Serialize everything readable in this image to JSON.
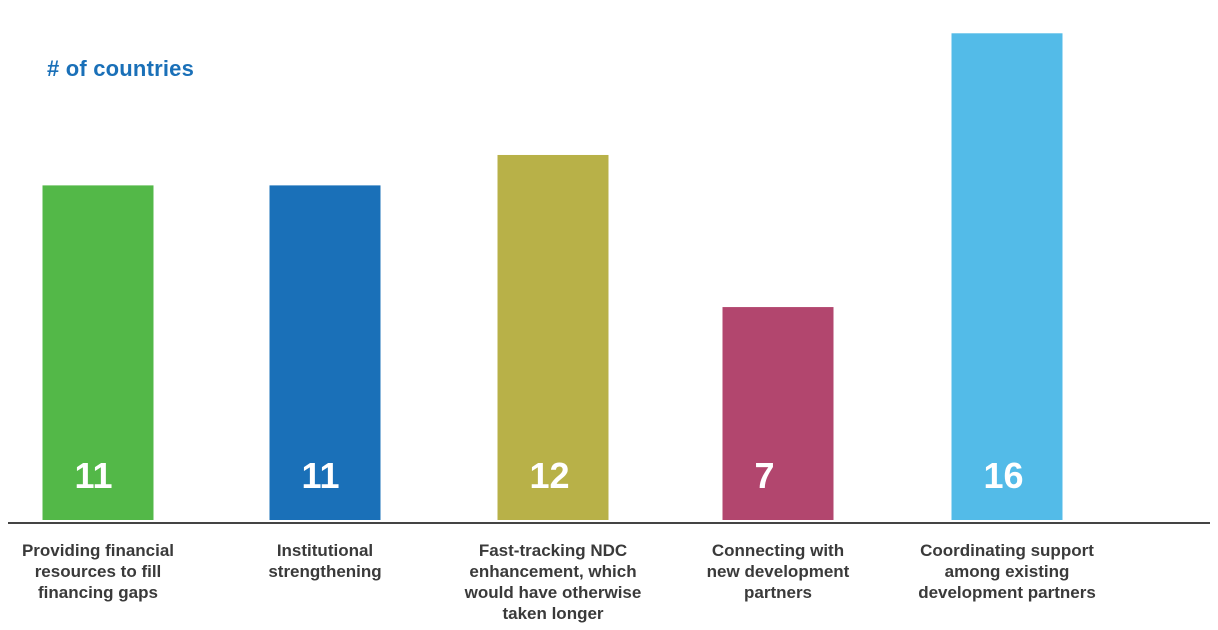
{
  "chart_data": {
    "type": "bar",
    "ylabel": "# of countries",
    "xlabel": "",
    "categories": [
      "Providing financial resources to fill financing gaps",
      "Institutional strengthening",
      "Fast-tracking NDC enhancement, which would have otherwise taken longer",
      "Connecting with new development partners",
      "Coordinating support among existing development partners"
    ],
    "category_lines": [
      [
        "Providing financial",
        "resources to fill",
        "financing gaps"
      ],
      [
        "Institutional",
        "strengthening"
      ],
      [
        "Fast-tracking NDC",
        "enhancement, which",
        "would have otherwise",
        "taken longer"
      ],
      [
        "Connecting with",
        "new development",
        "partners"
      ],
      [
        "Coordinating support",
        "among existing",
        "development partners"
      ]
    ],
    "values": [
      11,
      11,
      12,
      7,
      16
    ],
    "value_labels": [
      "11",
      "11",
      "12",
      "7",
      "16"
    ],
    "colors": [
      "#53b848",
      "#1a70b8",
      "#b8b148",
      "#b2466e",
      "#53bbe8"
    ],
    "ylim": [
      0,
      16.7
    ],
    "grid": false,
    "legend": "none"
  }
}
